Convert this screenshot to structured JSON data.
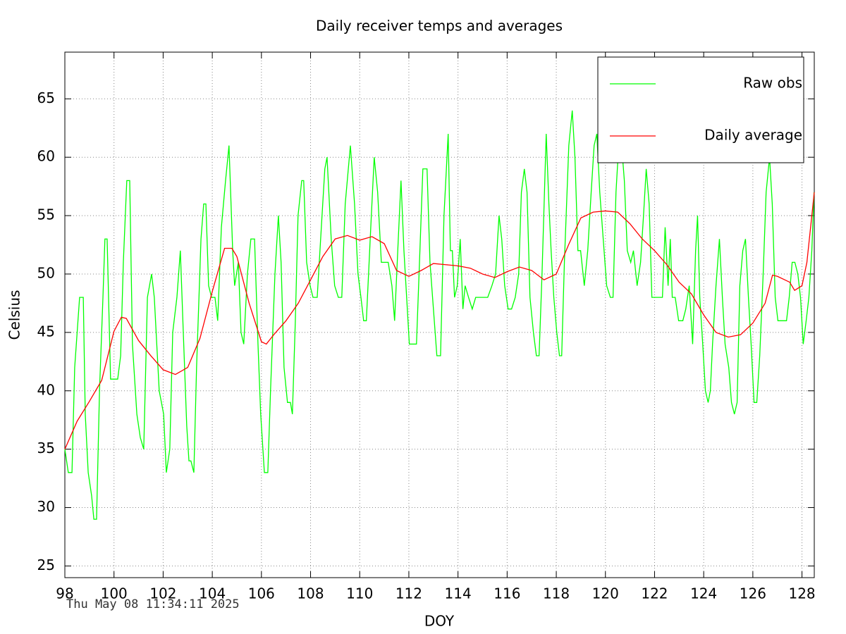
{
  "chart_data": {
    "type": "line",
    "title": "Daily receiver temps and averages",
    "xlabel": "DOY",
    "ylabel": "Celsius",
    "timestamp": "Thu May 08 11:34:11 2025",
    "xlim": [
      98,
      128.5
    ],
    "ylim": [
      24,
      69
    ],
    "xticks": [
      98,
      100,
      102,
      104,
      106,
      108,
      110,
      112,
      114,
      116,
      118,
      120,
      122,
      124,
      126,
      128
    ],
    "yticks": [
      25,
      30,
      35,
      40,
      45,
      50,
      55,
      60,
      65
    ],
    "grid": true,
    "legend": "top-right",
    "series": [
      {
        "name": "Raw obs",
        "color": "#00ff00",
        "x": [
          98.0,
          98.14,
          98.29,
          98.4,
          98.6,
          98.75,
          98.83,
          98.95,
          99.09,
          99.18,
          99.29,
          99.41,
          99.55,
          99.63,
          99.72,
          99.86,
          100.01,
          100.15,
          100.27,
          100.38,
          100.52,
          100.64,
          100.75,
          100.93,
          101.07,
          101.21,
          101.36,
          101.53,
          101.64,
          101.84,
          102.02,
          102.13,
          102.27,
          102.39,
          102.56,
          102.7,
          102.82,
          102.96,
          103.05,
          103.13,
          103.25,
          103.36,
          103.54,
          103.65,
          103.74,
          103.85,
          103.97,
          104.11,
          104.22,
          104.37,
          104.54,
          104.68,
          104.83,
          104.91,
          105.06,
          105.17,
          105.28,
          105.43,
          105.57,
          105.72,
          105.86,
          105.97,
          106.12,
          106.26,
          106.37,
          106.55,
          106.69,
          106.8,
          106.92,
          107.06,
          107.18,
          107.26,
          107.38,
          107.49,
          107.64,
          107.72,
          107.84,
          107.98,
          108.1,
          108.27,
          108.41,
          108.58,
          108.67,
          108.84,
          108.98,
          109.13,
          109.27,
          109.41,
          109.62,
          109.79,
          109.93,
          110.05,
          110.16,
          110.27,
          110.45,
          110.59,
          110.73,
          110.88,
          111.02,
          111.16,
          111.31,
          111.42,
          111.57,
          111.68,
          111.8,
          111.91,
          112.02,
          112.17,
          112.31,
          112.45,
          112.57,
          112.74,
          112.86,
          113.0,
          113.14,
          113.29,
          113.43,
          113.6,
          113.69,
          113.77,
          113.86,
          113.97,
          114.09,
          114.2,
          114.29,
          114.43,
          114.58,
          114.72,
          114.86,
          115.04,
          115.21,
          115.38,
          115.53,
          115.67,
          115.78,
          115.9,
          116.04,
          116.18,
          116.33,
          116.47,
          116.58,
          116.7,
          116.81,
          116.93,
          117.07,
          117.19,
          117.3,
          117.42,
          117.59,
          117.7,
          117.79,
          117.9,
          118.02,
          118.13,
          118.22,
          118.33,
          118.51,
          118.65,
          118.76,
          118.88,
          118.99,
          119.14,
          119.28,
          119.42,
          119.54,
          119.65,
          119.77,
          119.91,
          120.05,
          120.2,
          120.31,
          120.43,
          120.54,
          120.66,
          120.77,
          120.89,
          121.03,
          121.14,
          121.29,
          121.43,
          121.55,
          121.66,
          121.78,
          121.89,
          122.03,
          122.2,
          122.32,
          122.43,
          122.55,
          122.64,
          122.72,
          122.84,
          122.98,
          123.15,
          123.27,
          123.41,
          123.55,
          123.67,
          123.75,
          123.84,
          123.96,
          124.07,
          124.18,
          124.27,
          124.36,
          124.5,
          124.64,
          124.76,
          124.87,
          125.02,
          125.13,
          125.25,
          125.36,
          125.47,
          125.59,
          125.7,
          125.82,
          125.93,
          126.05,
          126.16,
          126.28,
          126.42,
          126.54,
          126.68,
          126.79,
          126.91,
          127.02,
          127.2,
          127.37,
          127.48,
          127.6,
          127.71,
          127.83,
          127.94,
          128.05,
          128.17,
          128.28,
          128.4,
          128.49
        ],
        "values": [
          35,
          33,
          33,
          42,
          48,
          48,
          38,
          33,
          31,
          29,
          29,
          40,
          48,
          53,
          53,
          41,
          41,
          41,
          43,
          51,
          58,
          58,
          44,
          38,
          36,
          35,
          48,
          50,
          48,
          40,
          38,
          33,
          35,
          45,
          48,
          52,
          45,
          37,
          34,
          34,
          33,
          42,
          53,
          56,
          56,
          49,
          48,
          48,
          46,
          54,
          58,
          61,
          52,
          49,
          51,
          45,
          44,
          50,
          53,
          53,
          44,
          38,
          33,
          33,
          40,
          50,
          55,
          51,
          42,
          39,
          39,
          38,
          46,
          55,
          58,
          58,
          51,
          49,
          48,
          48,
          53,
          59,
          60,
          53,
          49,
          48,
          48,
          56,
          61,
          56,
          50,
          48,
          46,
          46,
          54,
          60,
          57,
          51,
          51,
          51,
          49,
          46,
          53,
          58,
          52,
          48,
          44,
          44,
          44,
          52,
          59,
          59,
          51,
          47,
          43,
          43,
          55,
          62,
          52,
          52,
          48,
          49,
          53,
          47,
          49,
          48,
          47,
          48,
          48,
          48,
          48,
          49,
          50,
          55,
          53,
          49,
          47,
          47,
          48,
          50,
          57,
          59,
          57,
          48,
          45,
          43,
          43,
          50,
          62,
          56,
          52,
          48,
          45,
          43,
          43,
          51,
          61,
          64,
          60,
          52,
          52,
          49,
          52,
          57,
          61,
          62,
          57,
          53,
          49,
          48,
          48,
          57,
          61,
          61,
          58,
          52,
          51,
          52,
          49,
          51,
          55,
          59,
          56,
          48,
          48,
          48,
          48,
          54,
          49,
          53,
          48,
          48,
          46,
          46,
          47,
          49,
          44,
          52,
          55,
          48,
          44,
          40,
          39,
          40,
          44,
          49,
          53,
          48,
          44,
          42,
          39,
          38,
          39,
          49,
          52,
          53,
          48,
          44,
          39,
          39,
          43,
          50,
          57,
          60,
          56,
          48,
          46,
          46,
          46,
          48,
          51,
          51,
          50,
          48,
          44,
          46,
          48,
          52,
          57
        ]
      },
      {
        "name": "Daily average",
        "color": "#ff0000",
        "x": [
          98,
          98.5,
          99,
          99.5,
          100,
          100.3,
          100.5,
          101,
          101.5,
          102,
          102.5,
          103,
          103.5,
          104,
          104.5,
          104.8,
          105,
          105.5,
          106,
          106.2,
          106.5,
          107,
          107.5,
          108,
          108.5,
          109,
          109.5,
          110,
          110.5,
          111,
          111.5,
          112,
          112.5,
          113,
          113.5,
          114,
          114.5,
          115,
          115.5,
          116,
          116.5,
          117,
          117.5,
          118,
          118.5,
          119,
          119.5,
          120,
          120.5,
          121,
          121.5,
          122,
          122.5,
          123,
          123.5,
          124,
          124.5,
          125,
          125.5,
          126,
          126.5,
          126.8,
          127,
          127.5,
          127.7,
          128,
          128.2,
          128.5
        ],
        "values": [
          35,
          37.4,
          39.1,
          40.9,
          45.1,
          46.3,
          46.2,
          44.3,
          43,
          41.8,
          41.4,
          42,
          44.5,
          48.5,
          52.2,
          52.2,
          51.5,
          47.5,
          44.2,
          44,
          44.8,
          46,
          47.5,
          49.5,
          51.5,
          53,
          53.3,
          52.9,
          53.2,
          52.6,
          50.3,
          49.8,
          50.3,
          50.9,
          50.8,
          50.7,
          50.5,
          50,
          49.7,
          50.2,
          50.6,
          50.3,
          49.5,
          50,
          52.5,
          54.8,
          55.3,
          55.4,
          55.3,
          54.3,
          53,
          52,
          50.8,
          49.3,
          48.3,
          46.5,
          45,
          44.6,
          44.8,
          45.8,
          47.5,
          49.9,
          49.8,
          49.3,
          48.6,
          49,
          51,
          57
        ]
      }
    ]
  }
}
